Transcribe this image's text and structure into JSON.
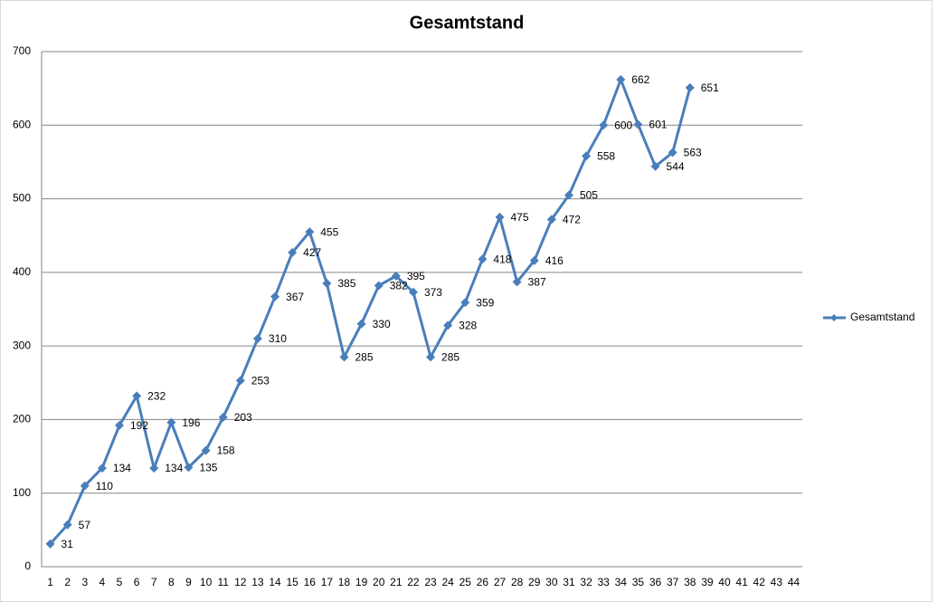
{
  "chart_data": {
    "type": "line",
    "title": "Gesamtstand",
    "categories": [
      1,
      2,
      3,
      4,
      5,
      6,
      7,
      8,
      9,
      10,
      11,
      12,
      13,
      14,
      15,
      16,
      17,
      18,
      19,
      20,
      21,
      22,
      23,
      24,
      25,
      26,
      27,
      28,
      29,
      30,
      31,
      32,
      33,
      34,
      35,
      36,
      37,
      38,
      39,
      40,
      41,
      42,
      43,
      44
    ],
    "series": [
      {
        "name": "Gesamtstand",
        "color": "#4a7ebb",
        "values": [
          31,
          57,
          110,
          134,
          192,
          232,
          134,
          196,
          135,
          158,
          203,
          253,
          310,
          367,
          427,
          455,
          385,
          285,
          330,
          382,
          395,
          373,
          285,
          328,
          359,
          418,
          475,
          387,
          416,
          472,
          505,
          558,
          600,
          662,
          601,
          544,
          563,
          651,
          null,
          null,
          null,
          null,
          null,
          null
        ]
      }
    ],
    "ylim": [
      0,
      700
    ],
    "yticks": [
      0,
      100,
      200,
      300,
      400,
      500,
      600,
      700
    ],
    "grid": true,
    "legend": "right"
  }
}
